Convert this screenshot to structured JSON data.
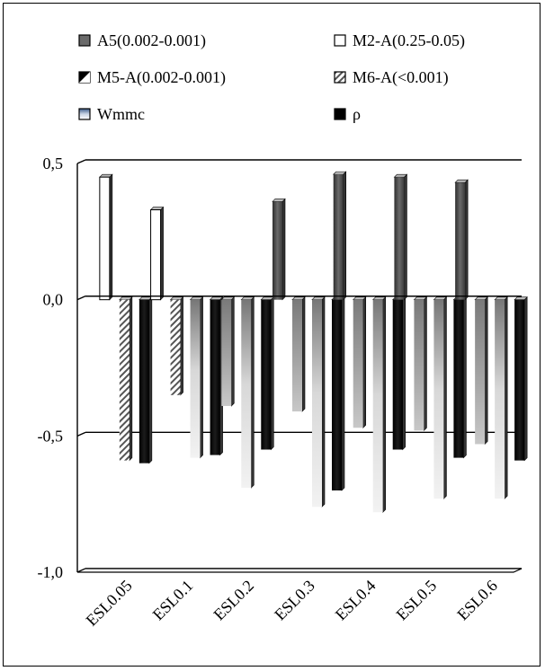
{
  "chart_data": {
    "type": "bar",
    "categories": [
      "ESL0.05",
      "ESL0.1",
      "ESL0.2",
      "ESL0.3",
      "ESL0.4",
      "ESL0.5",
      "ESL0.6"
    ],
    "series": [
      {
        "name": "A5(0.002-0.001)",
        "values": [
          0,
          0,
          0,
          0.36,
          0.46,
          0.45,
          0.43
        ],
        "color": "#5a5a5a"
      },
      {
        "name": "M2-A(0.25-0.05)",
        "values": [
          0.45,
          0.33,
          0,
          0,
          0,
          0,
          0
        ],
        "color": "#ffffff"
      },
      {
        "name": "M5-A(0.002-0.001)",
        "values": [
          0,
          0,
          -0.39,
          -0.41,
          -0.47,
          -0.48,
          -0.53
        ],
        "color": "#9a9a9a"
      },
      {
        "name": "M6-A(<0.001)",
        "values": [
          -0.59,
          -0.35,
          0,
          0,
          0,
          0,
          0
        ],
        "color": "#cccccc"
      },
      {
        "name": "Wmmc",
        "values": [
          0,
          -0.58,
          -0.69,
          -0.76,
          -0.78,
          -0.73,
          -0.73
        ],
        "color": "#e6e6e6"
      },
      {
        "name": "ρ",
        "values": [
          -0.6,
          -0.57,
          -0.55,
          -0.7,
          -0.55,
          -0.58,
          -0.59
        ],
        "color": "#000000"
      }
    ],
    "ylim": [
      -1.0,
      0.5
    ],
    "yticks": [
      0.5,
      0.0,
      -0.5,
      -1.0
    ],
    "ytick_labels": [
      "0,5",
      "0,0",
      "-0,5",
      "-1,0"
    ],
    "grid": true,
    "legend_position": "top"
  }
}
